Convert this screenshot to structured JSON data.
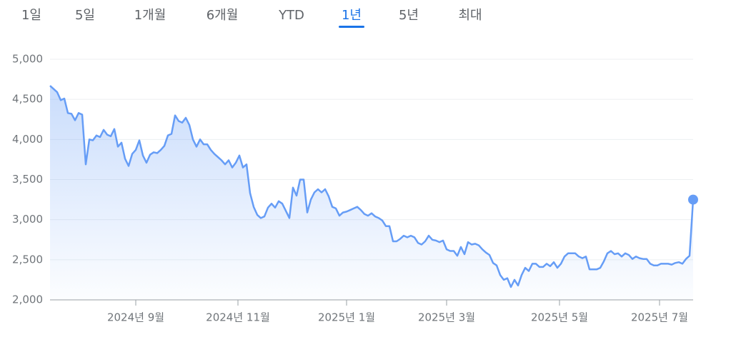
{
  "tabs": [
    "1일",
    "5일",
    "1개월",
    "6개월",
    "YTD",
    "1년",
    "5년",
    "최대"
  ],
  "selected_tab": 5,
  "chart_data": {
    "type": "line",
    "color": "#669df6",
    "grid": true,
    "values": [
      4670,
      4630,
      4590,
      4490,
      4510,
      4330,
      4320,
      4240,
      4330,
      4310,
      3690,
      4000,
      3990,
      4050,
      4030,
      4120,
      4060,
      4040,
      4130,
      3910,
      3960,
      3760,
      3670,
      3820,
      3870,
      3990,
      3800,
      3710,
      3810,
      3840,
      3830,
      3870,
      3920,
      4050,
      4070,
      4300,
      4230,
      4210,
      4270,
      4180,
      4000,
      3910,
      4000,
      3940,
      3940,
      3870,
      3820,
      3780,
      3740,
      3690,
      3740,
      3650,
      3710,
      3800,
      3650,
      3690,
      3330,
      3160,
      3060,
      3020,
      3040,
      3150,
      3200,
      3150,
      3230,
      3200,
      3110,
      3020,
      3400,
      3300,
      3500,
      3500,
      3090,
      3250,
      3340,
      3380,
      3340,
      3380,
      3290,
      3160,
      3140,
      3050,
      3090,
      3100,
      3120,
      3140,
      3160,
      3120,
      3070,
      3050,
      3080,
      3040,
      3020,
      2990,
      2920,
      2920,
      2730,
      2730,
      2760,
      2800,
      2780,
      2800,
      2780,
      2710,
      2690,
      2730,
      2800,
      2750,
      2740,
      2720,
      2740,
      2630,
      2610,
      2610,
      2550,
      2660,
      2570,
      2720,
      2690,
      2700,
      2680,
      2630,
      2590,
      2560,
      2460,
      2430,
      2310,
      2250,
      2270,
      2160,
      2250,
      2180,
      2310,
      2400,
      2360,
      2450,
      2450,
      2410,
      2410,
      2450,
      2420,
      2470,
      2400,
      2450,
      2540,
      2580,
      2580,
      2580,
      2540,
      2520,
      2540,
      2380,
      2380,
      2380,
      2400,
      2480,
      2580,
      2610,
      2570,
      2580,
      2540,
      2580,
      2560,
      2510,
      2540,
      2520,
      2510,
      2510,
      2450,
      2430,
      2430,
      2450,
      2450,
      2450,
      2440,
      2460,
      2470,
      2450,
      2510,
      2550,
      3250
    ],
    "xlim": [
      0,
      180
    ],
    "xticks": [
      {
        "value": 24,
        "label": "2024년 9월"
      },
      {
        "value": 52.6,
        "label": "2024년 11월"
      },
      {
        "value": 83,
        "label": "2025년 1월"
      },
      {
        "value": 111,
        "label": "2025년 3월"
      },
      {
        "value": 142.6,
        "label": "2025년 5월"
      },
      {
        "value": 170.6,
        "label": "2025년 7월"
      }
    ],
    "ylim": [
      2000,
      5000
    ],
    "yticks": [
      {
        "value": 2000,
        "label": "2,000"
      },
      {
        "value": 2500,
        "label": "2,500"
      },
      {
        "value": 3000,
        "label": "3,000"
      },
      {
        "value": 3500,
        "label": "3,500"
      },
      {
        "value": 4000,
        "label": "4,000"
      },
      {
        "value": 4500,
        "label": "4,500"
      },
      {
        "value": 5000,
        "label": "5,000"
      }
    ]
  }
}
